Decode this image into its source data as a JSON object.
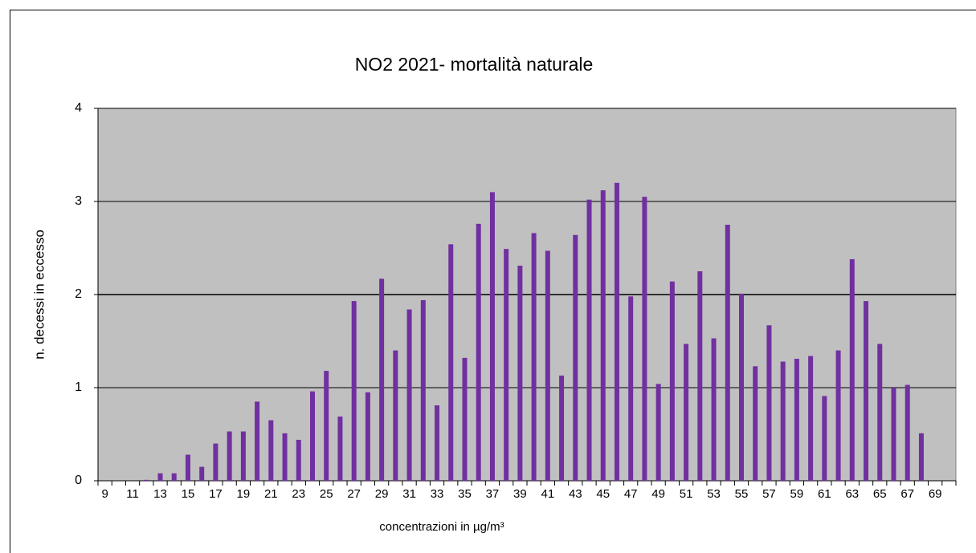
{
  "chart_data": {
    "type": "bar",
    "title": "NO2 2021- mortalità naturale",
    "x_label": "concentrazioni in µg/m³",
    "y_label": "n. decessi in eccesso",
    "categories": [
      "9",
      null,
      "11",
      null,
      "13",
      null,
      "15",
      null,
      "17",
      null,
      "19",
      null,
      "21",
      null,
      "23",
      null,
      "25",
      null,
      "27",
      null,
      "29",
      null,
      "31",
      null,
      "33",
      null,
      "35",
      null,
      "37",
      null,
      "39",
      null,
      "41",
      null,
      "43",
      null,
      "45",
      null,
      "47",
      null,
      "49",
      null,
      "51",
      null,
      "53",
      null,
      "55",
      null,
      "57",
      null,
      "59",
      null,
      "61",
      null,
      "63",
      null,
      "65",
      null,
      "67",
      null,
      "69",
      null
    ],
    "values": [
      0,
      0,
      0,
      0.01,
      0.08,
      0.08,
      0.28,
      0.15,
      0.4,
      0.53,
      0.53,
      0.85,
      0.65,
      0.51,
      0.44,
      0.96,
      1.18,
      0.69,
      1.93,
      0.95,
      2.17,
      1.4,
      1.84,
      1.94,
      0.81,
      2.54,
      1.32,
      2.76,
      3.1,
      2.49,
      2.31,
      2.66,
      2.47,
      1.13,
      2.64,
      3.02,
      3.12,
      3.2,
      1.98,
      3.05,
      1.04,
      2.14,
      1.47,
      2.25,
      1.53,
      2.75,
      2.01,
      1.23,
      1.67,
      1.28,
      1.31,
      1.34,
      0.91,
      1.4,
      2.38,
      1.93,
      1.47,
      1.0,
      1.03,
      0.51,
      0,
      0
    ],
    "color": "#7030a0",
    "ylim": [
      0,
      4
    ],
    "yticks": [
      0,
      1,
      2,
      3,
      4
    ],
    "grid": true
  }
}
